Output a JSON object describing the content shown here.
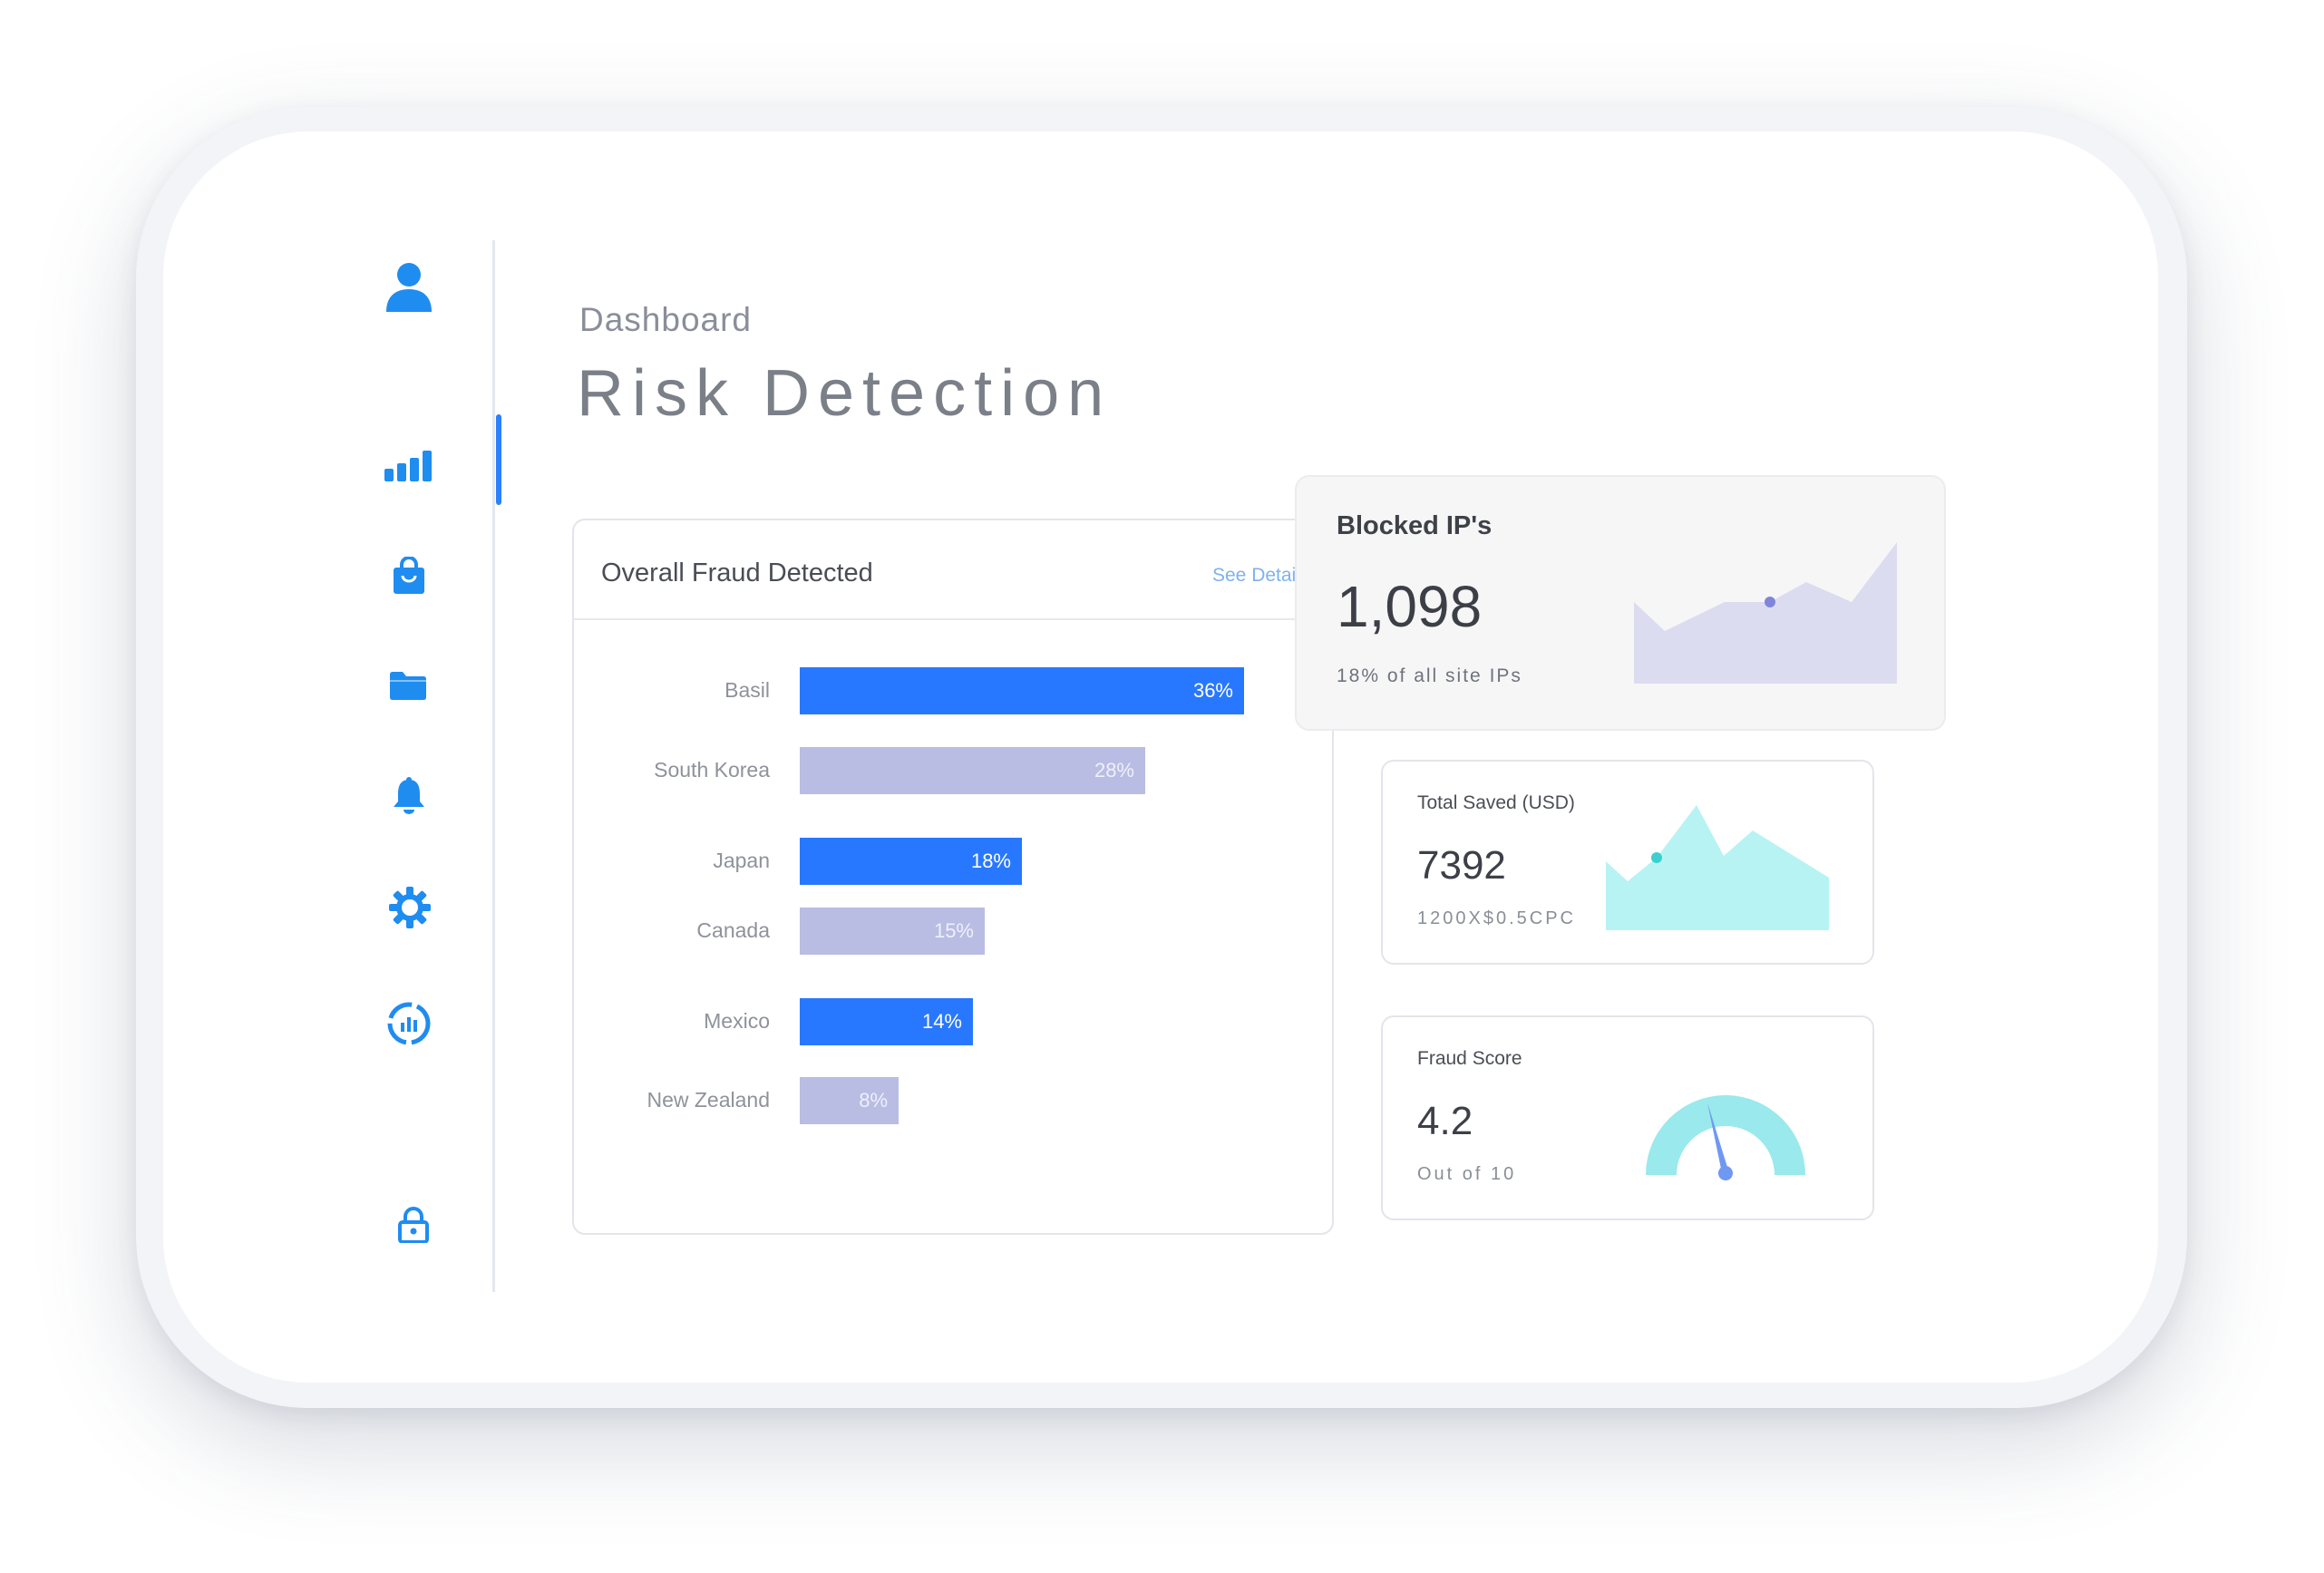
{
  "header": {
    "breadcrumb": "Dashboard",
    "title": "Risk Detection"
  },
  "sidebar": {
    "icons": [
      "user-icon",
      "bar-chart-icon",
      "shopping-bag-icon",
      "folder-icon",
      "bell-icon",
      "gear-icon",
      "analytics-icon",
      "lock-icon"
    ],
    "active": "bar-chart-icon",
    "accent_color": "#1f8cf0"
  },
  "fraud_card": {
    "title": "Overall Fraud Detected",
    "link": "See Details",
    "chart_data": {
      "type": "bar",
      "orientation": "horizontal",
      "categories": [
        "Basil",
        "South Korea",
        "Japan",
        "Canada",
        "Mexico",
        "New Zealand"
      ],
      "values": [
        36,
        28,
        18,
        15,
        14,
        8
      ],
      "labels": [
        "36%",
        "28%",
        "18%",
        "15%",
        "14%",
        "8%"
      ],
      "colors": [
        "#2878ff",
        "#b9bde3",
        "#2878ff",
        "#b9bde3",
        "#2878ff",
        "#b9bde3"
      ],
      "title": "Overall Fraud Detected",
      "xlabel": "",
      "ylabel": "",
      "unit": "%"
    }
  },
  "blocked_ips": {
    "title": "Blocked IP's",
    "value": "1,098",
    "subtitle": "18% of all site IPs",
    "fill_color": "#dcdcf0",
    "marker_color": "#7f86d8"
  },
  "total_saved": {
    "title": "Total Saved (USD)",
    "value": "7392",
    "subtitle": "1200X$0.5CPC",
    "fill_color": "#b8f3f3",
    "marker_color": "#3ccfd0"
  },
  "fraud_score": {
    "title": "Fraud Score",
    "value": "4.2",
    "subtitle": "Out of 10",
    "score": 4.2,
    "max": 10,
    "gauge_color": "#9ae9ec",
    "needle_color": "#6f98f2"
  }
}
